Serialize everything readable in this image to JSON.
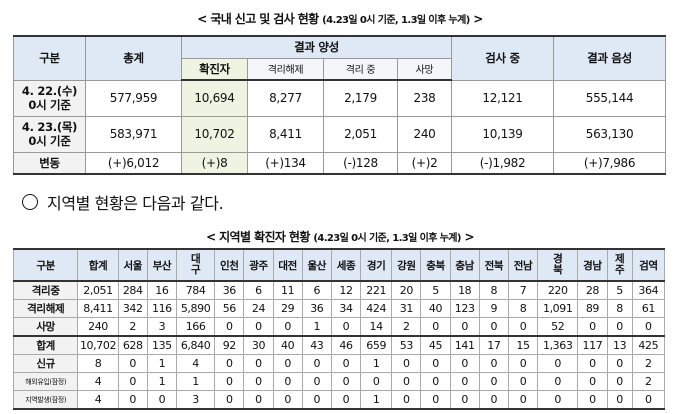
{
  "title1": {
    "main": "< 국내 신고 및 검사 현황 ",
    "note": "(4.23일 0시 기준, 1.3일 이후 누계)",
    "end": " >"
  },
  "table1": {
    "headers": {
      "group": "구분",
      "total": "총계",
      "result_positive": "결과 양성",
      "confirmed": "확진자",
      "released": "격리해제",
      "isolated": "격리 중",
      "deaths": "사망",
      "testing": "검사 중",
      "result_negative": "결과 음성"
    },
    "rows": [
      {
        "label1": "4. 22.(수)",
        "label2": "0시 기준",
        "total": "577,959",
        "confirmed": "10,694",
        "released": "8,277",
        "isolated": "2,179",
        "deaths": "238",
        "testing": "12,121",
        "negative": "555,144"
      },
      {
        "label1": "4. 23.(목)",
        "label2": "0시 기준",
        "total": "583,971",
        "confirmed": "10,702",
        "released": "8,411",
        "isolated": "2,051",
        "deaths": "240",
        "testing": "10,139",
        "negative": "563,130"
      },
      {
        "label1": "변동",
        "label2": "",
        "total": "(+)6,012",
        "confirmed": "(+)8",
        "released": "(+)134",
        "isolated": "(-)128",
        "deaths": "(+)2",
        "testing": "(-)1,982",
        "negative": "(+)7,986"
      }
    ]
  },
  "section_text": "지역별 현황은 다음과 같다.",
  "title2": {
    "main": "< 지역별 확진자 현황 ",
    "note": "(4.23일 0시 기준, 1.3일 이후 누계)",
    "end": " >"
  },
  "table2": {
    "headers": [
      "구분",
      "합계",
      "서울",
      "부산",
      "대구",
      "인천",
      "광주",
      "대전",
      "울산",
      "세종",
      "경기",
      "강원",
      "충북",
      "충남",
      "전북",
      "전남",
      "경북",
      "경남",
      "제주",
      "검역"
    ],
    "rows": [
      {
        "label": "격리중",
        "note": "",
        "values": [
          "2,051",
          "284",
          "16",
          "784",
          "36",
          "6",
          "11",
          "6",
          "12",
          "221",
          "20",
          "5",
          "18",
          "8",
          "7",
          "220",
          "28",
          "5",
          "364"
        ]
      },
      {
        "label": "격리해제",
        "note": "",
        "values": [
          "8,411",
          "342",
          "116",
          "5,890",
          "56",
          "24",
          "29",
          "36",
          "34",
          "424",
          "31",
          "40",
          "123",
          "9",
          "8",
          "1,091",
          "89",
          "8",
          "61"
        ]
      },
      {
        "label": "사망",
        "note": "",
        "values": [
          "240",
          "2",
          "3",
          "166",
          "0",
          "0",
          "0",
          "1",
          "0",
          "14",
          "2",
          "0",
          "0",
          "0",
          "0",
          "52",
          "0",
          "0",
          "0"
        ]
      },
      {
        "label": "합계",
        "note": "",
        "values": [
          "10,702",
          "628",
          "135",
          "6,840",
          "92",
          "30",
          "40",
          "43",
          "46",
          "659",
          "53",
          "45",
          "141",
          "17",
          "15",
          "1,363",
          "117",
          "13",
          "425"
        ]
      },
      {
        "label": "신규",
        "note": "",
        "values": [
          "8",
          "0",
          "1",
          "4",
          "0",
          "0",
          "0",
          "0",
          "0",
          "1",
          "0",
          "0",
          "0",
          "0",
          "0",
          "0",
          "0",
          "0",
          "2"
        ]
      },
      {
        "label": "해외유입",
        "note": "(잠정)",
        "values": [
          "4",
          "0",
          "1",
          "1",
          "0",
          "0",
          "0",
          "0",
          "0",
          "0",
          "0",
          "0",
          "0",
          "0",
          "0",
          "0",
          "0",
          "0",
          "2"
        ]
      },
      {
        "label": "지역발생",
        "note": "(잠정)",
        "values": [
          "4",
          "0",
          "0",
          "3",
          "0",
          "0",
          "0",
          "0",
          "0",
          "1",
          "0",
          "0",
          "0",
          "0",
          "0",
          "0",
          "0",
          "0",
          "0"
        ]
      }
    ]
  }
}
